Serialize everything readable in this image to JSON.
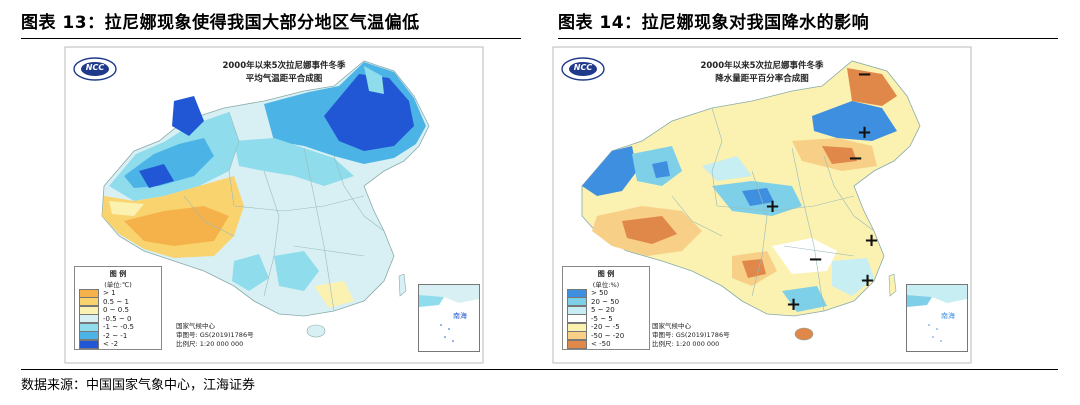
{
  "figure13": {
    "title": "图表 13：拉尼娜现象使得我国大部分地区气温偏低",
    "map_title_line1": "2000年以来5次拉尼娜事件冬季",
    "map_title_line2": "平均气温距平合成图",
    "legend_title": "图 例",
    "legend_unit": "(单位:℃)",
    "legend_items": [
      {
        "label": "> 1",
        "color": "#f6b24a"
      },
      {
        "label": "0.5 ~ 1",
        "color": "#f9d36e"
      },
      {
        "label": "0 ~ 0.5",
        "color": "#fbf1b0"
      },
      {
        "label": "-0.5 ~ 0",
        "color": "#d8f0f4"
      },
      {
        "label": "-1 ~ -0.5",
        "color": "#8fdcec"
      },
      {
        "label": "-2 ~ -1",
        "color": "#4cb3e6"
      },
      {
        "label": "< -2",
        "color": "#2157d4"
      }
    ],
    "credit_line1": "国家气候中心",
    "credit_line2": "审图号: GS(2019)1786号",
    "credit_line3": "比例尺: 1:20 000 000",
    "inset_label": "南海",
    "logo_text": "NCC"
  },
  "figure14": {
    "title": "图表 14：拉尼娜现象对我国降水的影响",
    "map_title_line1": "2000年以来5次拉尼娜事件冬季",
    "map_title_line2": "降水量距平百分率合成图",
    "legend_title": "图 例",
    "legend_unit": "(单位:%)",
    "legend_items": [
      {
        "label": "> 50",
        "color": "#3f8fe0"
      },
      {
        "label": "20 ~ 50",
        "color": "#7ecfe8"
      },
      {
        "label": "5 ~ 20",
        "color": "#c7eef2"
      },
      {
        "label": "-5 ~ 5",
        "color": "#ffffff"
      },
      {
        "label": "-20 ~ -5",
        "color": "#fbf1b0"
      },
      {
        "label": "-50 ~ -20",
        "color": "#f7cf86"
      },
      {
        "label": "< -50",
        "color": "#e0874a"
      }
    ],
    "credit_line1": "国家气候中心",
    "credit_line2": "审图号: GS(2019)1786号",
    "credit_line3": "比例尺: 1:20 000 000",
    "inset_label": "南海",
    "logo_text": "NCC",
    "plus_symbol": "+",
    "minus_symbol": "−"
  },
  "source": "数据来源：中国国家气象中心，江海证券"
}
